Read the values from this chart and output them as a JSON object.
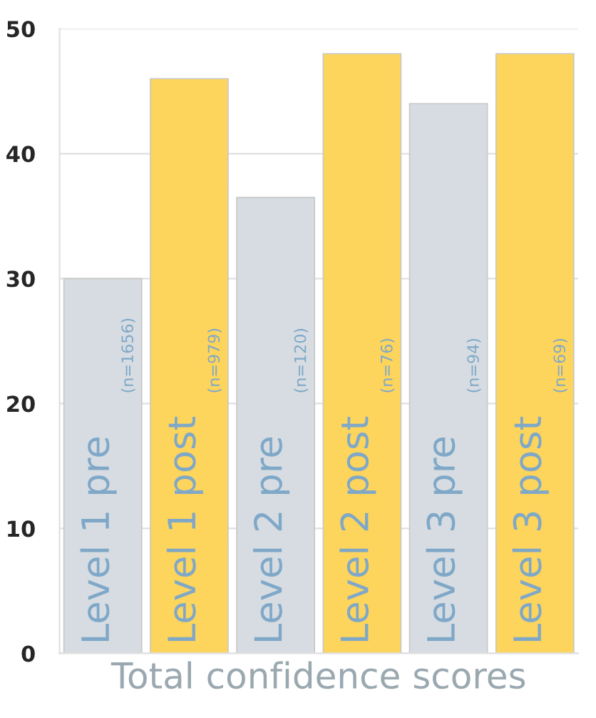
{
  "chart_data": {
    "type": "bar",
    "xlabel": "Total confidence scores",
    "categories": [
      "Level 1 pre",
      "Level 1 post",
      "Level 2 pre",
      "Level 2 post",
      "Level 3 pre",
      "Level 3 post"
    ],
    "values": [
      30,
      46,
      36.5,
      48,
      44,
      48
    ],
    "colors": [
      "#d6dce1",
      "#fdd45c",
      "#d6dce1",
      "#fdd45c",
      "#d6dce1",
      "#fdd45c"
    ],
    "annotations": [
      "(n=1656)",
      "(n=979)",
      "(n=120)",
      "(n=76)",
      "(n=94)",
      "(n=69)"
    ],
    "ylim": [
      0,
      50
    ],
    "yticks": [
      0,
      10,
      20,
      30,
      40,
      50
    ],
    "grid": "y"
  }
}
